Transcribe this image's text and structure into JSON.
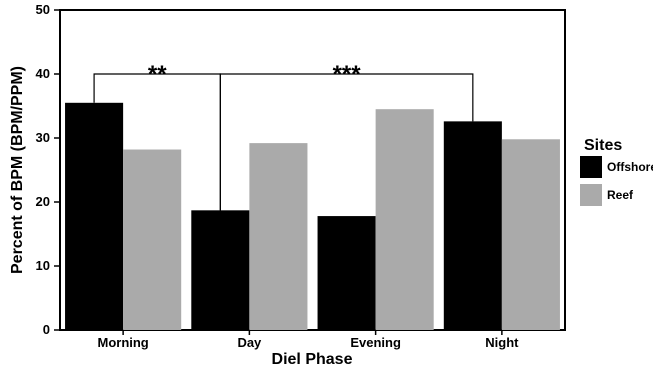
{
  "chart_data": {
    "type": "bar",
    "title": "",
    "xlabel": "Diel Phase",
    "ylabel": "Percent of BPM (BPM/PPM)",
    "categories": [
      "Morning",
      "Day",
      "Evening",
      "Night"
    ],
    "series": [
      {
        "name": "Offshore",
        "color": "#000000",
        "values": [
          35.5,
          18.7,
          17.8,
          32.6
        ]
      },
      {
        "name": "Reef",
        "color": "#aaaaaa",
        "values": [
          28.2,
          29.2,
          34.5,
          29.8
        ]
      }
    ],
    "ylim": [
      0,
      50
    ],
    "yticks": [
      0,
      10,
      20,
      30,
      40,
      50
    ],
    "grid": false,
    "legend": {
      "title": "Sites",
      "placement": "right"
    },
    "annotations": [
      {
        "label": "**",
        "from": "Morning",
        "to": "Day",
        "level": 40
      },
      {
        "label": "***",
        "from": "Day",
        "to": "Night",
        "level": 40
      }
    ]
  }
}
